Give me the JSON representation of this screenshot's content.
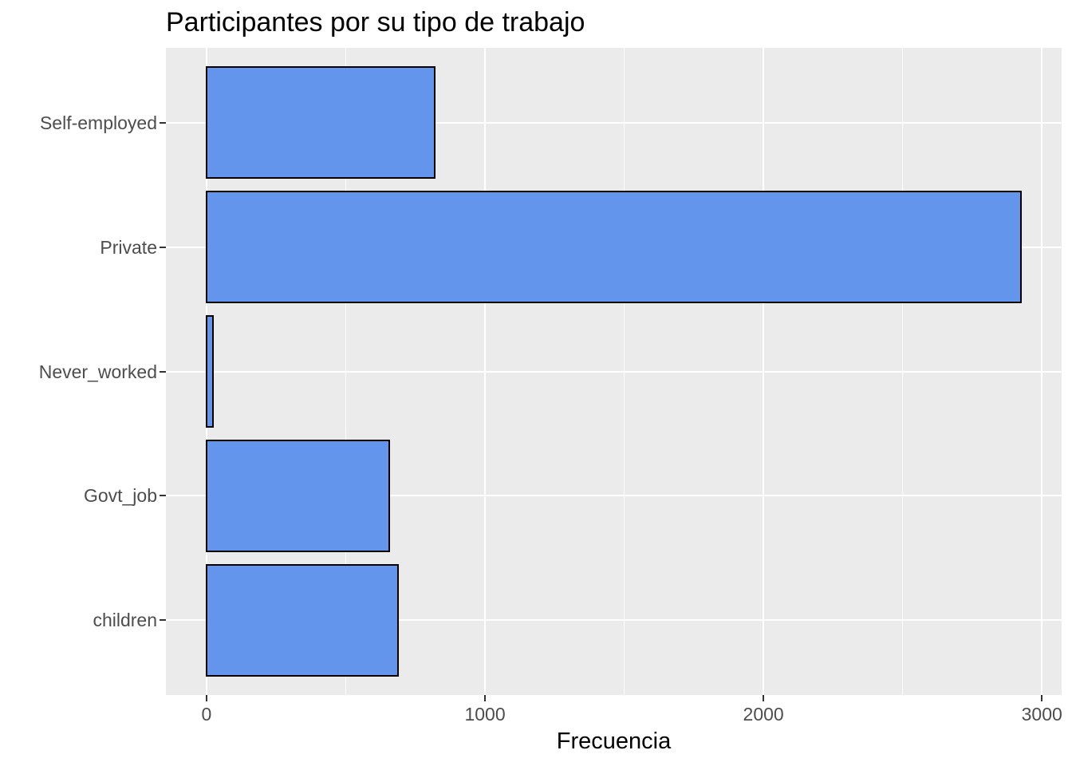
{
  "chart_data": {
    "type": "bar",
    "orientation": "horizontal",
    "title": "Participantes por su tipo de trabajo",
    "xlabel": "Frecuencia",
    "ylabel": "",
    "categories": [
      "Self-employed",
      "Private",
      "Never_worked",
      "Govt_job",
      "children"
    ],
    "values": [
      819,
      2925,
      22,
      657,
      687
    ],
    "x_ticks": [
      0,
      1000,
      2000,
      3000
    ],
    "x_minor_ticks": [
      500,
      1500,
      2500
    ],
    "xlim": [
      -146,
      3071
    ],
    "bar_width_fraction": 0.9,
    "grid": "white major gridlines x+y, white minor gridlines x, on gray panel",
    "legend": "none",
    "colors": {
      "bar_fill": "#6495ED",
      "bar_border": "#000000",
      "panel_background": "#EBEBEB",
      "gridline": "#FFFFFF",
      "axis_text": "#4D4D4D",
      "tick_mark": "#333333",
      "title_text": "#000000",
      "axis_title_text": "#000000",
      "background": "#FFFFFF"
    }
  }
}
